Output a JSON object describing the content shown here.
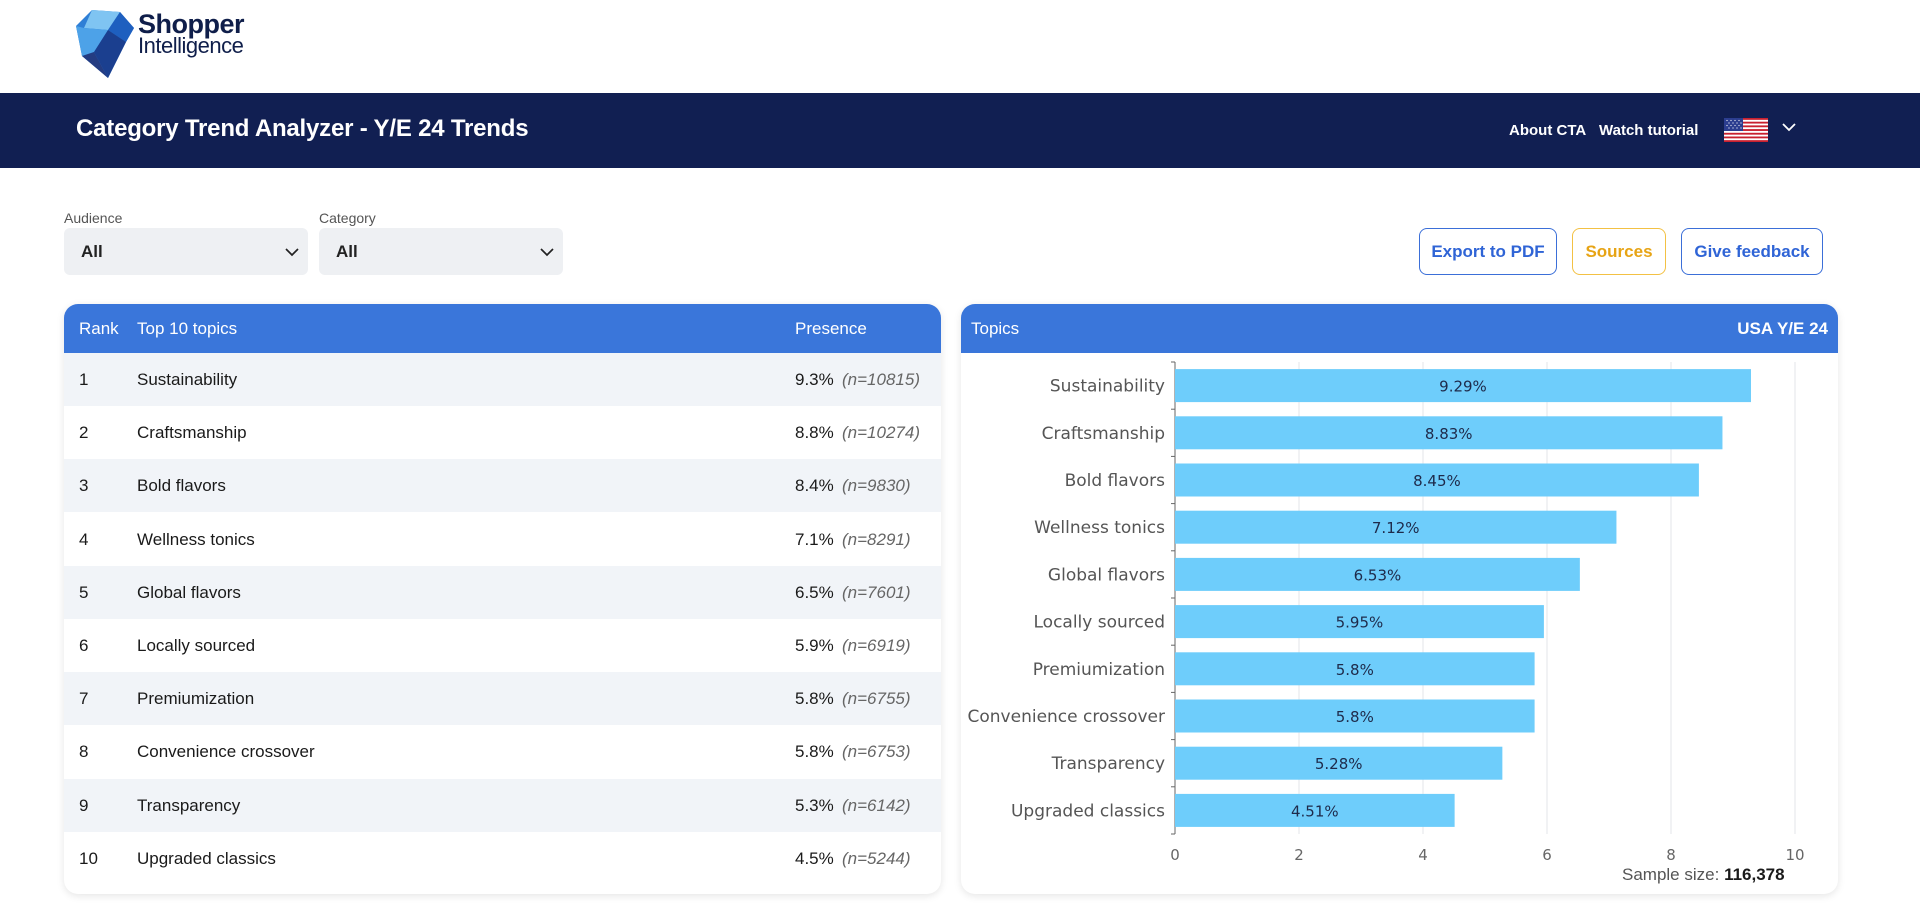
{
  "brand": {
    "line1": "Shopper",
    "line2": "Intelligence"
  },
  "header": {
    "title": "Category Trend Analyzer - Y/E 24 Trends",
    "links": [
      "About CTA",
      "Watch tutorial"
    ],
    "flag_icon": "us-flag-icon"
  },
  "filters": {
    "audience": {
      "label": "Audience",
      "value": "All"
    },
    "category": {
      "label": "Category",
      "value": "All"
    }
  },
  "buttons": {
    "export": "Export to PDF",
    "sources": "Sources",
    "feedback": "Give feedback"
  },
  "colors": {
    "header_bg": "#111f52",
    "card_head_bg": "#3a76da",
    "bar": "#6ecdfb",
    "sources_accent": "#e7a415"
  },
  "table": {
    "headers": {
      "rank": "Rank",
      "topic": "Top 10 topics",
      "presence": "Presence"
    },
    "rows": [
      {
        "rank": "1",
        "topic": "Sustainability",
        "presence": "9.3%",
        "n": "(n=10815)"
      },
      {
        "rank": "2",
        "topic": "Craftsmanship",
        "presence": "8.8%",
        "n": "(n=10274)"
      },
      {
        "rank": "3",
        "topic": "Bold flavors",
        "presence": "8.4%",
        "n": "(n=9830)"
      },
      {
        "rank": "4",
        "topic": "Wellness tonics",
        "presence": "7.1%",
        "n": "(n=8291)"
      },
      {
        "rank": "5",
        "topic": "Global flavors",
        "presence": "6.5%",
        "n": "(n=7601)"
      },
      {
        "rank": "6",
        "topic": "Locally sourced",
        "presence": "5.9%",
        "n": "(n=6919)"
      },
      {
        "rank": "7",
        "topic": "Premiumization",
        "presence": "5.8%",
        "n": "(n=6755)"
      },
      {
        "rank": "8",
        "topic": "Convenience crossover",
        "presence": "5.8%",
        "n": "(n=6753)"
      },
      {
        "rank": "9",
        "topic": "Transparency",
        "presence": "5.3%",
        "n": "(n=6142)"
      },
      {
        "rank": "10",
        "topic": "Upgraded classics",
        "presence": "4.5%",
        "n": "(n=5244)"
      }
    ]
  },
  "chart_panel": {
    "title": "Topics",
    "region": "USA Y/E 24",
    "sample_label": "Sample size:",
    "sample_value": "116,378"
  },
  "chart_data": {
    "type": "bar",
    "orientation": "horizontal",
    "categories": [
      "Sustainability",
      "Craftsmanship",
      "Bold flavors",
      "Wellness tonics",
      "Global flavors",
      "Locally sourced",
      "Premiumization",
      "Convenience crossover",
      "Transparency",
      "Upgraded classics"
    ],
    "values": [
      9.29,
      8.83,
      8.45,
      7.12,
      6.53,
      5.95,
      5.8,
      5.8,
      5.28,
      4.51
    ],
    "labels": [
      "9.29%",
      "8.83%",
      "8.45%",
      "7.12%",
      "6.53%",
      "5.95%",
      "5.8%",
      "5.8%",
      "5.28%",
      "4.51%"
    ],
    "xlim": [
      0,
      10
    ],
    "xticks": [
      "0",
      "2",
      "4",
      "6",
      "8",
      "10"
    ],
    "grid": true,
    "legend": "none"
  }
}
